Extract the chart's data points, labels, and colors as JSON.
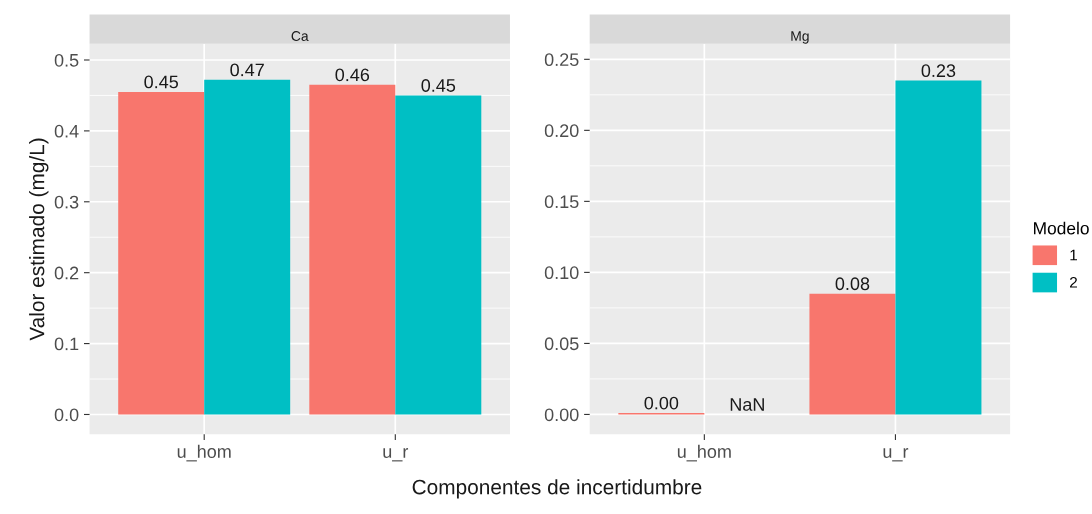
{
  "chart_data": [
    {
      "type": "bar",
      "title": "Ca",
      "xlabel": "Componentes de incertidumbre",
      "ylabel": "Valor estimado (mg/L)",
      "categories": [
        "u_hom",
        "u_r"
      ],
      "series": [
        {
          "name": "1",
          "color": "#f8766d",
          "values": [
            0.455,
            0.465
          ],
          "value_labels": [
            "0.45",
            "0.46"
          ]
        },
        {
          "name": "2",
          "color": "#00bfc4",
          "values": [
            0.472,
            0.45
          ],
          "value_labels": [
            "0.47",
            "0.45"
          ]
        }
      ],
      "ylim": [
        -0.028,
        0.523
      ],
      "yticks": [
        {
          "value": 0,
          "label": "0.0"
        },
        0.1,
        0.2,
        0.3,
        0.4,
        0.5
      ],
      "grid": true,
      "legend": "right",
      "legend_title": "Modelo"
    },
    {
      "type": "bar",
      "title": "Mg",
      "categories": [
        "u_hom",
        "u_r"
      ],
      "series": [
        {
          "name": "1",
          "color": "#f8766d",
          "values": [
            0.001,
            0.085
          ],
          "value_labels": [
            "0.00",
            "0.08"
          ]
        },
        {
          "name": "2",
          "color": "#00bfc4",
          "values": [
            null,
            0.235
          ],
          "value_labels": [
            "NaN",
            "0.23"
          ]
        }
      ],
      "ylim": [
        -0.014,
        0.261
      ],
      "yticks": [
        {
          "value": 0,
          "label": "0.00"
        },
        {
          "value": 0.05,
          "label": "0.05"
        },
        {
          "value": 0.1,
          "label": "0.10"
        },
        {
          "value": 0.15,
          "label": "0.15"
        },
        {
          "value": 0.2,
          "label": "0.20"
        },
        {
          "value": 0.25,
          "label": "0.25"
        }
      ],
      "grid": true
    }
  ]
}
